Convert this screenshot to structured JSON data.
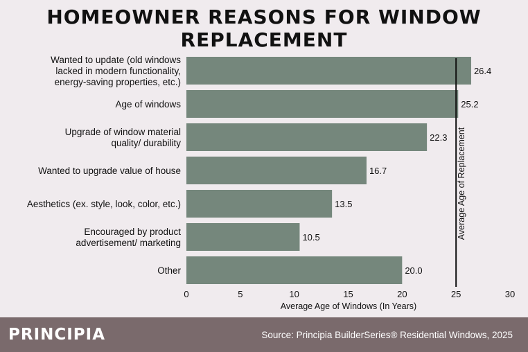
{
  "title": "HOMEOWNER REASONS FOR WINDOW REPLACEMENT",
  "footer": {
    "brand": "PRINCIPIA",
    "source": "Source: Principia BuilderSeries® Residential Windows, 2025"
  },
  "colors": {
    "bar": "#75877c",
    "background": "#f0ebee",
    "footer": "#7a6a6c"
  },
  "chart_data": {
    "type": "bar",
    "orientation": "horizontal",
    "categories": [
      [
        "Wanted to update (old windows",
        "lacked in modern functionality,",
        "energy-saving properties, etc.)"
      ],
      [
        "Age of windows"
      ],
      [
        "Upgrade of window material",
        "quality/ durability"
      ],
      [
        "Wanted to upgrade value of house"
      ],
      [
        "Aesthetics (ex. style, look, color, etc.)"
      ],
      [
        "Encouraged by product",
        "advertisement/ marketing"
      ],
      [
        "Other"
      ]
    ],
    "values": [
      26.4,
      25.2,
      22.3,
      16.7,
      13.5,
      10.5,
      20.0
    ],
    "value_labels": [
      "26.4",
      "25.2",
      "22.3",
      "16.7",
      "13.5",
      "10.5",
      "20.0"
    ],
    "xlabel": "Average Age of Windows (In Years)",
    "xlim": [
      0,
      30
    ],
    "xticks": [
      "0",
      "5",
      "10",
      "15",
      "20",
      "25",
      "30"
    ],
    "grid": false,
    "reference_line": {
      "value": 25,
      "label": "Average Age of Replacement"
    }
  }
}
